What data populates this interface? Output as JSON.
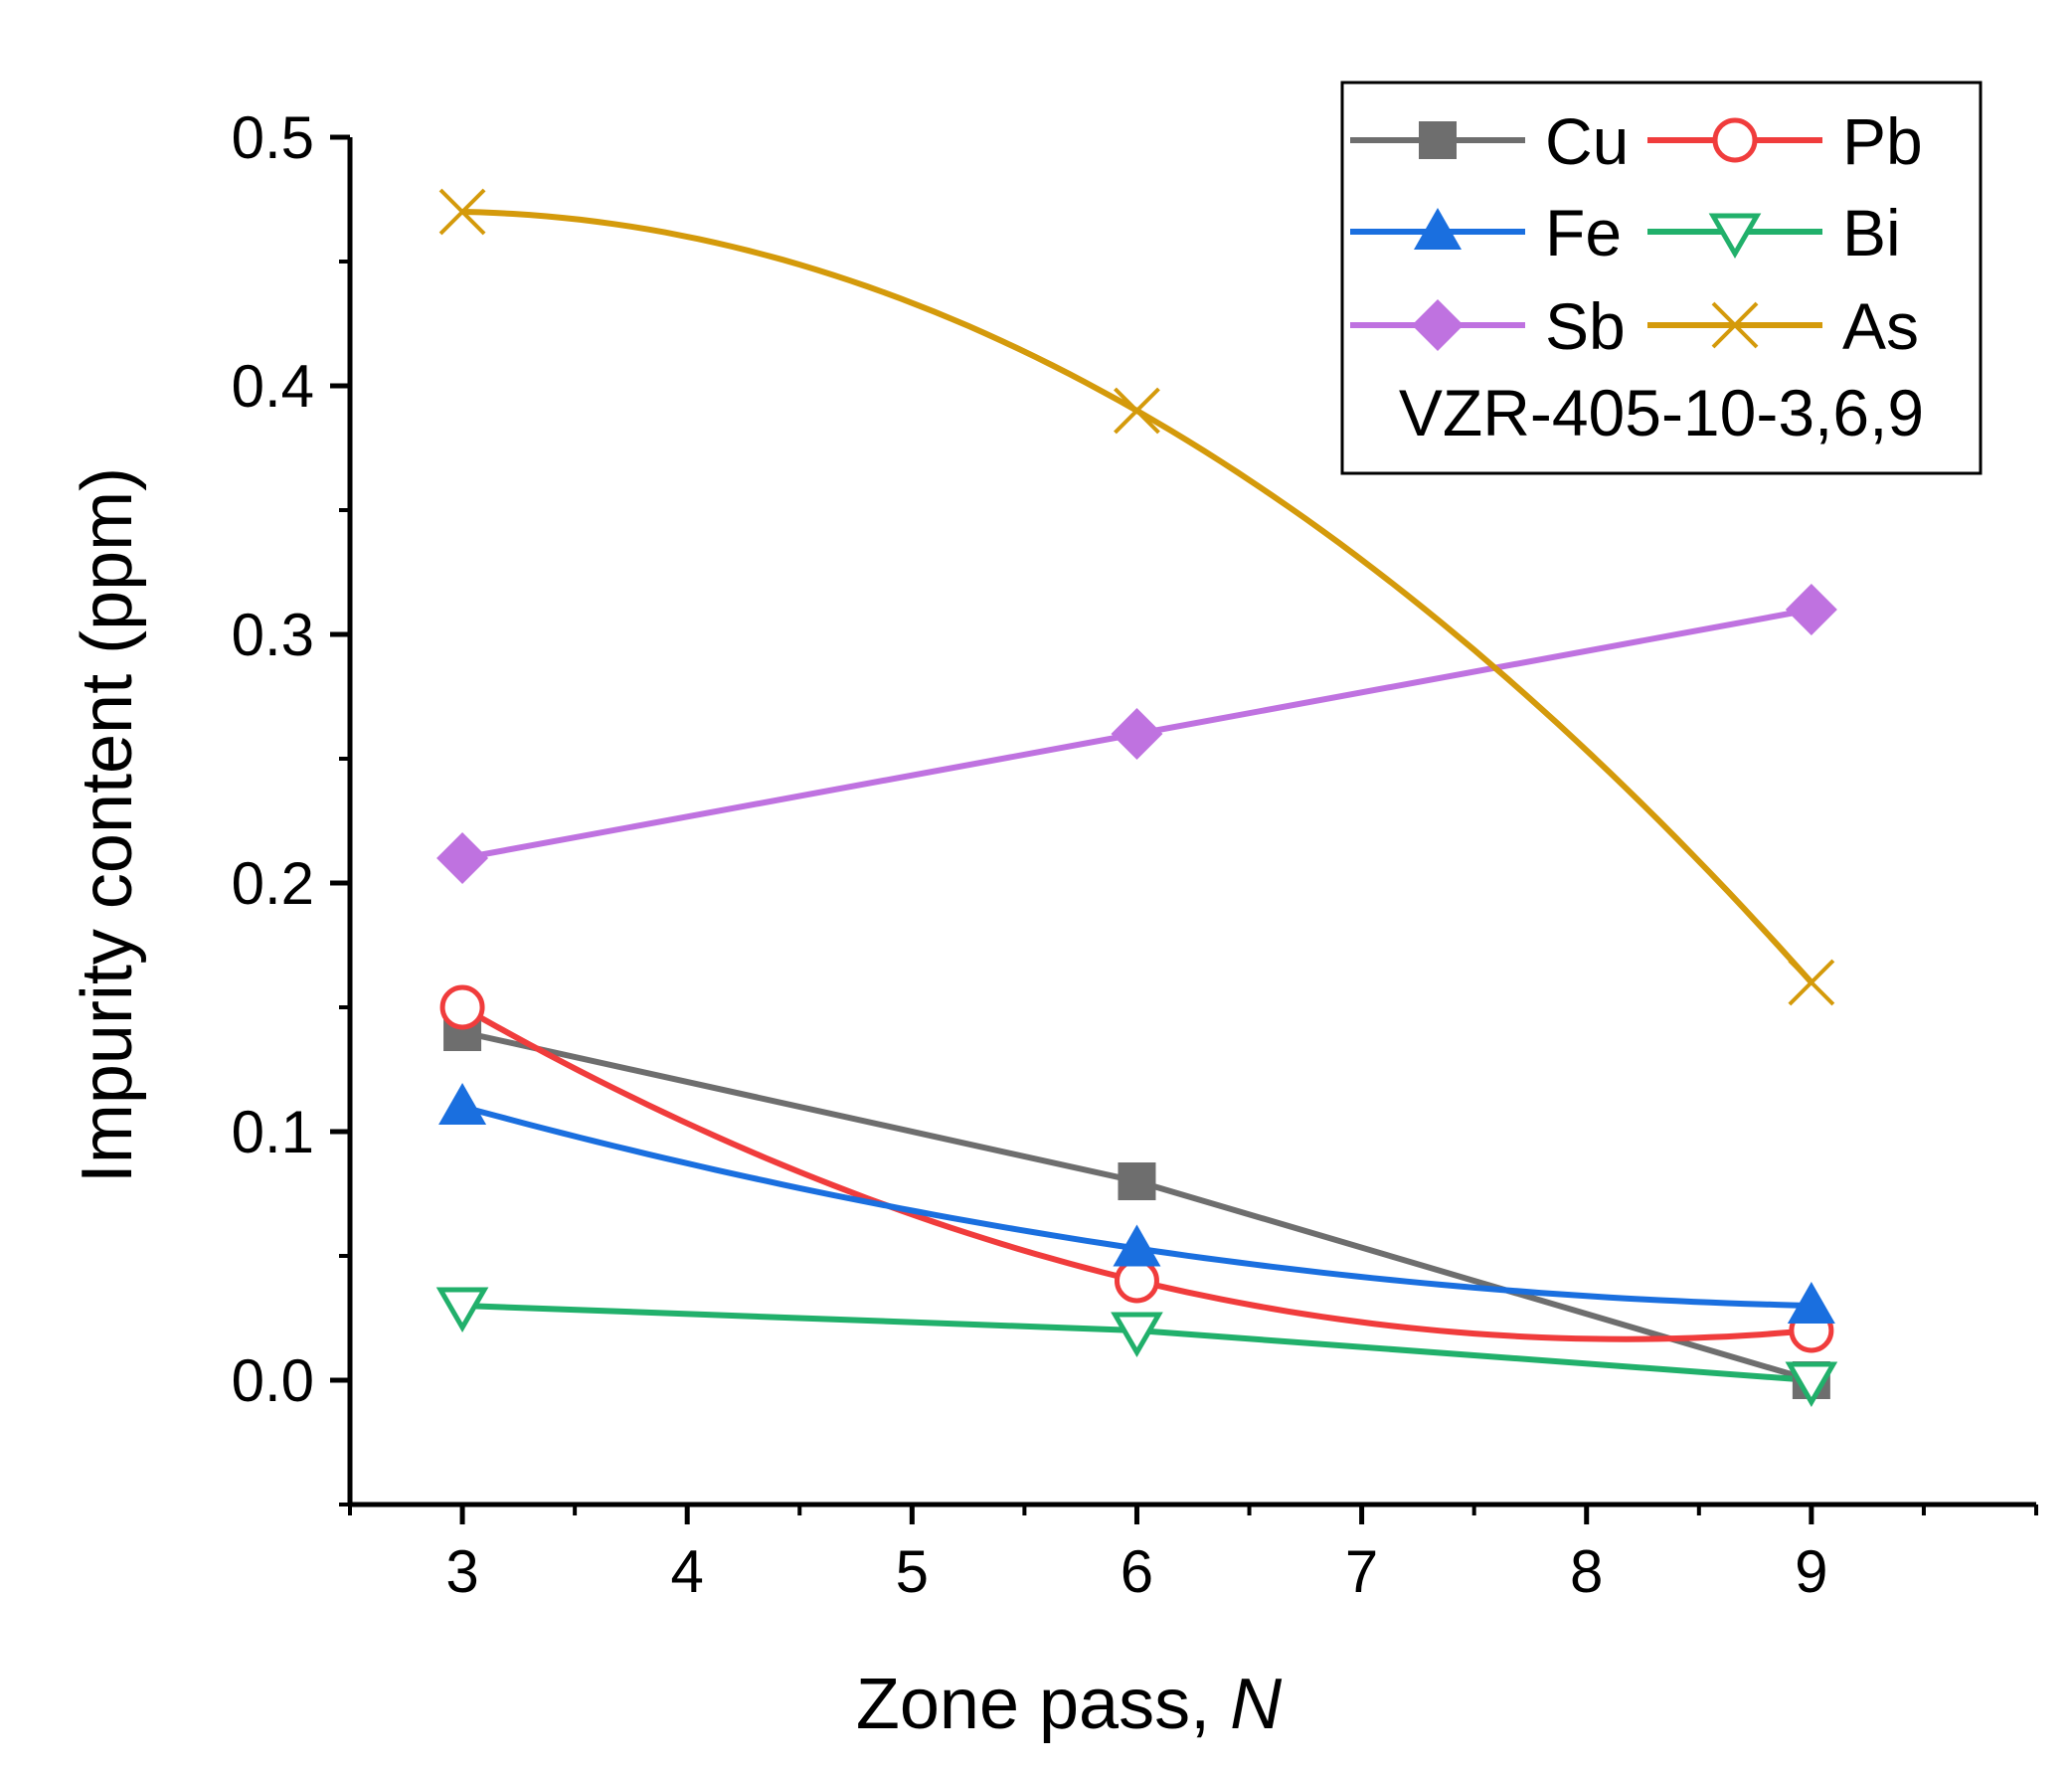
{
  "chart_data": {
    "type": "line",
    "xlabel": "Zone pass, ",
    "xlabel_var": "N",
    "ylabel": "Impurity content (ppm)",
    "xlim": [
      2.5,
      10
    ],
    "ylim": [
      -0.05,
      0.5
    ],
    "x_ticks": [
      "3",
      "4",
      "5",
      "6",
      "7",
      "8",
      "9"
    ],
    "y_ticks": [
      "0.0",
      "0.1",
      "0.2",
      "0.3",
      "0.4",
      "0.5"
    ],
    "legend_position": "top-right",
    "legend_note": "VZR-405-10-3,6,9",
    "grid": false,
    "x": [
      3,
      6,
      9
    ],
    "series": [
      {
        "name": "Cu",
        "values": [
          0.14,
          0.08,
          0.0
        ],
        "color": "#6e6e6e",
        "marker": "square-filled",
        "curve": "straight"
      },
      {
        "name": "Pb",
        "values": [
          0.15,
          0.04,
          0.02
        ],
        "color": "#f03c3c",
        "marker": "circle-open",
        "curve": "smooth"
      },
      {
        "name": "Fe",
        "values": [
          0.11,
          0.053,
          0.03
        ],
        "color": "#1a6fdf",
        "marker": "triangle-up-filled",
        "curve": "smooth"
      },
      {
        "name": "Bi",
        "values": [
          0.03,
          0.02,
          0.0
        ],
        "color": "#21b06b",
        "marker": "triangle-down-open",
        "curve": "straight"
      },
      {
        "name": "Sb",
        "values": [
          0.21,
          0.26,
          0.31
        ],
        "color": "#bf72e0",
        "marker": "diamond-filled",
        "curve": "straight"
      },
      {
        "name": "As",
        "values": [
          0.47,
          0.39,
          0.16
        ],
        "color": "#d49a0b",
        "marker": "x",
        "curve": "fit"
      }
    ]
  }
}
